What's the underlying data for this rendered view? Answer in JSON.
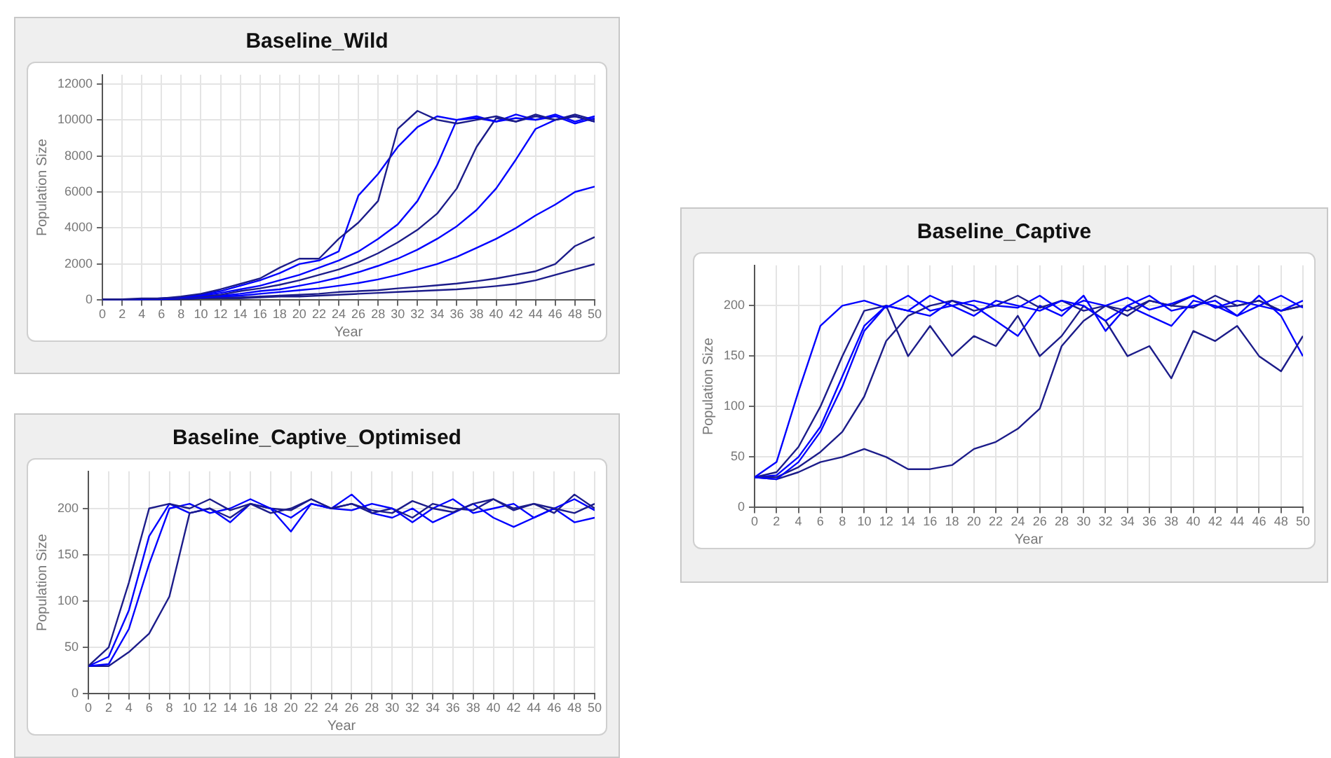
{
  "chart_data": [
    {
      "type": "line",
      "title": "Baseline_Wild",
      "xlabel": "Year",
      "ylabel": "Population Size",
      "x": [
        0,
        2,
        4,
        6,
        8,
        10,
        12,
        14,
        16,
        18,
        20,
        22,
        24,
        26,
        28,
        30,
        32,
        34,
        36,
        38,
        40,
        42,
        44,
        46,
        48,
        50
      ],
      "xlim": [
        0,
        50
      ],
      "xticks": [
        0,
        2,
        4,
        6,
        8,
        10,
        12,
        14,
        16,
        18,
        20,
        22,
        24,
        26,
        28,
        30,
        32,
        34,
        36,
        38,
        40,
        42,
        44,
        46,
        48,
        50
      ],
      "ylim": [
        0,
        12500
      ],
      "yticks": [
        0,
        2000,
        4000,
        6000,
        8000,
        10000,
        12000
      ],
      "grid": true,
      "marker": "none",
      "series": [
        {
          "color": "#1c1c8a",
          "values": [
            50,
            50,
            100,
            100,
            200,
            350,
            600,
            900,
            1200,
            1800,
            2300,
            2300,
            3400,
            4300,
            5500,
            9500,
            10500,
            10000,
            9800,
            10000,
            10200,
            9900,
            10300,
            10000,
            10200,
            9900
          ]
        },
        {
          "color": "#0000ff",
          "values": [
            50,
            50,
            50,
            100,
            150,
            300,
            500,
            800,
            1100,
            1500,
            2000,
            2200,
            2700,
            5800,
            7000,
            8500,
            9600,
            10200,
            10000,
            10100,
            9900,
            10300,
            10000,
            10200,
            9800,
            10100
          ]
        },
        {
          "color": "#0000ff",
          "values": [
            50,
            50,
            50,
            100,
            150,
            250,
            400,
            600,
            800,
            1100,
            1400,
            1800,
            2200,
            2700,
            3400,
            4200,
            5500,
            7500,
            10000,
            10200,
            9900,
            10100,
            10000,
            10300,
            9900,
            10200
          ]
        },
        {
          "color": "#1c1c8a",
          "values": [
            50,
            50,
            50,
            100,
            100,
            200,
            300,
            500,
            650,
            850,
            1100,
            1400,
            1700,
            2100,
            2600,
            3200,
            3900,
            4800,
            6200,
            8500,
            10100,
            9900,
            10200,
            10000,
            10300,
            10000
          ]
        },
        {
          "color": "#0000ff",
          "values": [
            50,
            50,
            50,
            50,
            100,
            150,
            250,
            350,
            500,
            600,
            800,
            1000,
            1250,
            1550,
            1900,
            2300,
            2800,
            3400,
            4100,
            5000,
            6200,
            7800,
            9500,
            10000,
            10200,
            9900
          ]
        },
        {
          "color": "#0000ff",
          "values": [
            50,
            50,
            50,
            50,
            100,
            150,
            200,
            250,
            350,
            450,
            550,
            650,
            800,
            950,
            1150,
            1400,
            1700,
            2000,
            2400,
            2900,
            3400,
            4000,
            4700,
            5300,
            6000,
            6300
          ]
        },
        {
          "color": "#1c1c8a",
          "values": [
            50,
            50,
            50,
            50,
            50,
            100,
            150,
            150,
            200,
            250,
            300,
            350,
            450,
            500,
            550,
            650,
            730,
            820,
            920,
            1050,
            1200,
            1400,
            1600,
            2000,
            3000,
            3500
          ]
        },
        {
          "color": "#1c1c8a",
          "values": [
            50,
            50,
            50,
            50,
            50,
            100,
            100,
            100,
            150,
            200,
            200,
            250,
            300,
            350,
            400,
            450,
            500,
            550,
            600,
            680,
            780,
            900,
            1100,
            1400,
            1700,
            2000
          ]
        }
      ]
    },
    {
      "type": "line",
      "title": "Baseline_Captive",
      "xlabel": "Year",
      "ylabel": "Population Size",
      "x": [
        0,
        2,
        4,
        6,
        8,
        10,
        12,
        14,
        16,
        18,
        20,
        22,
        24,
        26,
        28,
        30,
        32,
        34,
        36,
        38,
        40,
        42,
        44,
        46,
        48,
        50
      ],
      "xlim": [
        0,
        50
      ],
      "xticks": [
        0,
        2,
        4,
        6,
        8,
        10,
        12,
        14,
        16,
        18,
        20,
        22,
        24,
        26,
        28,
        30,
        32,
        34,
        36,
        38,
        40,
        42,
        44,
        46,
        48,
        50
      ],
      "ylim": [
        0,
        240
      ],
      "yticks": [
        0,
        50,
        100,
        150,
        200
      ],
      "grid": true,
      "marker": "none",
      "series": [
        {
          "color": "#0000ff",
          "values": [
            30,
            45,
            115,
            180,
            200,
            205,
            198,
            210,
            195,
            200,
            205,
            200,
            198,
            210,
            195,
            205,
            200,
            208,
            196,
            202,
            210,
            198,
            205,
            200,
            195,
            205
          ]
        },
        {
          "color": "#0000ff",
          "values": [
            30,
            28,
            45,
            75,
            120,
            175,
            200,
            195,
            210,
            200,
            190,
            205,
            200,
            195,
            205,
            200,
            185,
            200,
            210,
            195,
            200,
            205,
            190,
            200,
            210,
            198
          ]
        },
        {
          "color": "#1c1c8a",
          "values": [
            30,
            30,
            40,
            55,
            75,
            110,
            165,
            190,
            200,
            205,
            195,
            200,
            210,
            198,
            205,
            195,
            200,
            190,
            205,
            200,
            198,
            210,
            200,
            205,
            195,
            200
          ]
        },
        {
          "color": "#1c1c8a",
          "values": [
            30,
            28,
            35,
            45,
            50,
            58,
            50,
            38,
            38,
            42,
            58,
            65,
            78,
            98,
            160,
            185,
            200,
            195,
            205,
            200,
            210,
            198,
            200,
            205,
            195,
            200
          ]
        },
        {
          "color": "#1c1c8a",
          "values": [
            30,
            35,
            60,
            100,
            150,
            195,
            200,
            150,
            180,
            150,
            170,
            160,
            190,
            150,
            170,
            200,
            185,
            150,
            160,
            128,
            175,
            165,
            180,
            150,
            135,
            170
          ]
        },
        {
          "color": "#0000ff",
          "values": [
            30,
            32,
            50,
            80,
            130,
            180,
            200,
            195,
            190,
            205,
            200,
            185,
            170,
            200,
            190,
            210,
            175,
            200,
            190,
            180,
            205,
            200,
            190,
            210,
            190,
            150
          ]
        }
      ]
    },
    {
      "type": "line",
      "title": "Baseline_Captive_Optimised",
      "xlabel": "Year",
      "ylabel": "Population Size",
      "x": [
        0,
        2,
        4,
        6,
        8,
        10,
        12,
        14,
        16,
        18,
        20,
        22,
        24,
        26,
        28,
        30,
        32,
        34,
        36,
        38,
        40,
        42,
        44,
        46,
        48,
        50
      ],
      "xlim": [
        0,
        50
      ],
      "xticks": [
        0,
        2,
        4,
        6,
        8,
        10,
        12,
        14,
        16,
        18,
        20,
        22,
        24,
        26,
        28,
        30,
        32,
        34,
        36,
        38,
        40,
        42,
        44,
        46,
        48,
        50
      ],
      "ylim": [
        0,
        240
      ],
      "yticks": [
        0,
        50,
        100,
        150,
        200
      ],
      "grid": true,
      "marker": "none",
      "series": [
        {
          "color": "#1c1c8a",
          "values": [
            30,
            50,
            120,
            200,
            205,
            200,
            210,
            198,
            205,
            195,
            200,
            210,
            200,
            205,
            198,
            195,
            208,
            200,
            196,
            205,
            210,
            198,
            205,
            200,
            195,
            205
          ]
        },
        {
          "color": "#0000ff",
          "values": [
            30,
            32,
            70,
            140,
            200,
            205,
            195,
            200,
            210,
            200,
            190,
            205,
            200,
            198,
            205,
            200,
            185,
            200,
            210,
            195,
            200,
            205,
            190,
            200,
            210,
            198
          ]
        },
        {
          "color": "#1c1c8a",
          "values": [
            30,
            30,
            45,
            65,
            105,
            195,
            200,
            190,
            205,
            200,
            198,
            210,
            200,
            205,
            195,
            200,
            190,
            205,
            200,
            198,
            210,
            200,
            205,
            195,
            215,
            200
          ]
        },
        {
          "color": "#0000ff",
          "values": [
            30,
            40,
            90,
            170,
            205,
            195,
            200,
            185,
            205,
            200,
            175,
            205,
            200,
            215,
            195,
            190,
            200,
            185,
            195,
            205,
            190,
            180,
            190,
            200,
            185,
            190
          ]
        }
      ]
    }
  ]
}
